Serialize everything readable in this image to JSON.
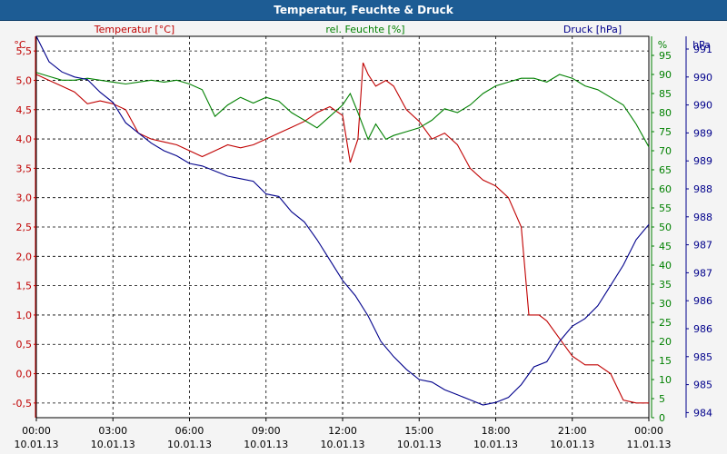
{
  "window": {
    "title": "Temperatur, Feuchte & Druck"
  },
  "colors": {
    "temperature": "#c00000",
    "humidity": "#008000",
    "pressure": "#00008b"
  },
  "chart_data": {
    "type": "line",
    "title": "Temperatur, Feuchte & Druck",
    "grid": true,
    "legend": "top (axis headers)",
    "x_ticks": [
      {
        "h": 0,
        "time": "00:00",
        "date": "10.01.13"
      },
      {
        "h": 3,
        "time": "03:00",
        "date": "10.01.13"
      },
      {
        "h": 6,
        "time": "06:00",
        "date": "10.01.13"
      },
      {
        "h": 9,
        "time": "09:00",
        "date": "10.01.13"
      },
      {
        "h": 12,
        "time": "12:00",
        "date": "10.01.13"
      },
      {
        "h": 15,
        "time": "15:00",
        "date": "10.01.13"
      },
      {
        "h": 18,
        "time": "18:00",
        "date": "10.01.13"
      },
      {
        "h": 21,
        "time": "21:00",
        "date": "10.01.13"
      },
      {
        "h": 24,
        "time": "00:00",
        "date": "11.01.13"
      }
    ],
    "axes": {
      "temperature": {
        "header": "Temperatur [°C]",
        "unit": "°C",
        "range": [
          -0.75,
          5.75
        ],
        "ticks": [
          [
            -0.5,
            "-0,5"
          ],
          [
            0,
            "0,0"
          ],
          [
            0.5,
            "0,5"
          ],
          [
            1,
            "1,0"
          ],
          [
            1.5,
            "1,5"
          ],
          [
            2,
            "2,0"
          ],
          [
            2.5,
            "2,5"
          ],
          [
            3,
            "3,0"
          ],
          [
            3.5,
            "3,5"
          ],
          [
            4,
            "4,0"
          ],
          [
            4.5,
            "4,5"
          ],
          [
            5,
            "5,0"
          ],
          [
            5.5,
            "5,5"
          ]
        ]
      },
      "humidity": {
        "header": "rel. Feuchte [%]",
        "unit": "%",
        "range": [
          0,
          100
        ],
        "ticks": [
          [
            0,
            "0"
          ],
          [
            5,
            "5"
          ],
          [
            10,
            "10"
          ],
          [
            15,
            "15"
          ],
          [
            20,
            "20"
          ],
          [
            25,
            "25"
          ],
          [
            30,
            "30"
          ],
          [
            35,
            "35"
          ],
          [
            40,
            "40"
          ],
          [
            45,
            "45"
          ],
          [
            50,
            "50"
          ],
          [
            55,
            "55"
          ],
          [
            60,
            "60"
          ],
          [
            65,
            "65"
          ],
          [
            70,
            "70"
          ],
          [
            75,
            "75"
          ],
          [
            80,
            "80"
          ],
          [
            85,
            "85"
          ],
          [
            90,
            "90"
          ],
          [
            95,
            "95"
          ]
        ]
      },
      "pressure": {
        "header": "Druck [hPa]",
        "unit": "hPa",
        "range": [
          983.9,
          991.4
        ],
        "ticks": [
          [
            984,
            "984"
          ],
          [
            984.55,
            "985"
          ],
          [
            985.1,
            "985"
          ],
          [
            985.65,
            "986"
          ],
          [
            986.2,
            "986"
          ],
          [
            986.75,
            "987"
          ],
          [
            987.3,
            "987"
          ],
          [
            987.85,
            "988"
          ],
          [
            988.4,
            "988"
          ],
          [
            988.95,
            "989"
          ],
          [
            989.5,
            "989"
          ],
          [
            990.05,
            "990"
          ],
          [
            990.6,
            "990"
          ],
          [
            991.15,
            "991"
          ]
        ]
      }
    },
    "series": [
      {
        "name": "Temperatur [°C]",
        "axis": "temperature",
        "points": [
          [
            0,
            5.1
          ],
          [
            0.5,
            5.0
          ],
          [
            1,
            4.9
          ],
          [
            1.5,
            4.8
          ],
          [
            2,
            4.6
          ],
          [
            2.5,
            4.65
          ],
          [
            3,
            4.6
          ],
          [
            3.5,
            4.5
          ],
          [
            4,
            4.1
          ],
          [
            4.5,
            4.0
          ],
          [
            5,
            3.95
          ],
          [
            5.5,
            3.9
          ],
          [
            6,
            3.8
          ],
          [
            6.5,
            3.7
          ],
          [
            7,
            3.8
          ],
          [
            7.5,
            3.9
          ],
          [
            8,
            3.85
          ],
          [
            8.5,
            3.9
          ],
          [
            9,
            4.0
          ],
          [
            9.5,
            4.1
          ],
          [
            10,
            4.2
          ],
          [
            10.5,
            4.3
          ],
          [
            11,
            4.45
          ],
          [
            11.5,
            4.55
          ],
          [
            12,
            4.4
          ],
          [
            12.3,
            3.6
          ],
          [
            12.6,
            4.0
          ],
          [
            12.8,
            5.3
          ],
          [
            13,
            5.1
          ],
          [
            13.3,
            4.9
          ],
          [
            13.7,
            5.0
          ],
          [
            14,
            4.9
          ],
          [
            14.5,
            4.5
          ],
          [
            15,
            4.3
          ],
          [
            15.5,
            4.0
          ],
          [
            16,
            4.1
          ],
          [
            16.5,
            3.9
          ],
          [
            17,
            3.5
          ],
          [
            17.5,
            3.3
          ],
          [
            18,
            3.2
          ],
          [
            18.5,
            3.0
          ],
          [
            19,
            2.5
          ],
          [
            19.3,
            1.0
          ],
          [
            19.7,
            1.0
          ],
          [
            20,
            0.9
          ],
          [
            20.5,
            0.6
          ],
          [
            21,
            0.3
          ],
          [
            21.5,
            0.15
          ],
          [
            22,
            0.15
          ],
          [
            22.5,
            0.0
          ],
          [
            23,
            -0.45
          ],
          [
            23.5,
            -0.5
          ],
          [
            24,
            -0.5
          ]
        ]
      },
      {
        "name": "rel. Feuchte [%]",
        "axis": "humidity",
        "points": [
          [
            0,
            90.5
          ],
          [
            0.5,
            89.5
          ],
          [
            1,
            88.5
          ],
          [
            1.5,
            88.5
          ],
          [
            2,
            89
          ],
          [
            2.5,
            88.5
          ],
          [
            3,
            88
          ],
          [
            3.5,
            87.5
          ],
          [
            4,
            88
          ],
          [
            4.5,
            88.5
          ],
          [
            5,
            88
          ],
          [
            5.5,
            88.5
          ],
          [
            6,
            87.5
          ],
          [
            6.5,
            86
          ],
          [
            7,
            79
          ],
          [
            7.5,
            82
          ],
          [
            8,
            84
          ],
          [
            8.5,
            82.5
          ],
          [
            9,
            84
          ],
          [
            9.5,
            83
          ],
          [
            10,
            80
          ],
          [
            10.5,
            78
          ],
          [
            11,
            76
          ],
          [
            11.5,
            79
          ],
          [
            12,
            82
          ],
          [
            12.3,
            85
          ],
          [
            12.6,
            80
          ],
          [
            13,
            73
          ],
          [
            13.3,
            77
          ],
          [
            13.7,
            73
          ],
          [
            14,
            74
          ],
          [
            14.5,
            75
          ],
          [
            15,
            76
          ],
          [
            15.5,
            78
          ],
          [
            16,
            81
          ],
          [
            16.5,
            80
          ],
          [
            17,
            82
          ],
          [
            17.5,
            85
          ],
          [
            18,
            87
          ],
          [
            18.5,
            88
          ],
          [
            19,
            89
          ],
          [
            19.5,
            89
          ],
          [
            20,
            88
          ],
          [
            20.5,
            90
          ],
          [
            21,
            89
          ],
          [
            21.5,
            87
          ],
          [
            22,
            86
          ],
          [
            22.5,
            84
          ],
          [
            23,
            82
          ],
          [
            23.5,
            77
          ],
          [
            24,
            71
          ]
        ]
      },
      {
        "name": "Druck [hPa]",
        "axis": "pressure",
        "points": [
          [
            0,
            991.4
          ],
          [
            0.5,
            990.9
          ],
          [
            1,
            990.7
          ],
          [
            1.5,
            990.6
          ],
          [
            2,
            990.55
          ],
          [
            2.5,
            990.3
          ],
          [
            3,
            990.1
          ],
          [
            3.5,
            989.7
          ],
          [
            4,
            989.5
          ],
          [
            4.5,
            989.3
          ],
          [
            5,
            989.15
          ],
          [
            5.5,
            989.05
          ],
          [
            6,
            988.9
          ],
          [
            6.5,
            988.85
          ],
          [
            7,
            988.75
          ],
          [
            7.5,
            988.65
          ],
          [
            8,
            988.6
          ],
          [
            8.5,
            988.55
          ],
          [
            9,
            988.3
          ],
          [
            9.5,
            988.25
          ],
          [
            10,
            987.95
          ],
          [
            10.5,
            987.75
          ],
          [
            11,
            987.4
          ],
          [
            11.5,
            987.0
          ],
          [
            12,
            986.6
          ],
          [
            12.5,
            986.3
          ],
          [
            13,
            985.9
          ],
          [
            13.5,
            985.4
          ],
          [
            14,
            985.1
          ],
          [
            14.5,
            984.85
          ],
          [
            15,
            984.65
          ],
          [
            15.5,
            984.6
          ],
          [
            16,
            984.45
          ],
          [
            16.5,
            984.35
          ],
          [
            17,
            984.25
          ],
          [
            17.5,
            984.15
          ],
          [
            18,
            984.2
          ],
          [
            18.5,
            984.3
          ],
          [
            19,
            984.55
          ],
          [
            19.5,
            984.9
          ],
          [
            20,
            985.0
          ],
          [
            20.5,
            985.4
          ],
          [
            21,
            985.7
          ],
          [
            21.5,
            985.85
          ],
          [
            22,
            986.1
          ],
          [
            22.5,
            986.5
          ],
          [
            23,
            986.9
          ],
          [
            23.5,
            987.4
          ],
          [
            24,
            987.7
          ]
        ]
      }
    ]
  }
}
